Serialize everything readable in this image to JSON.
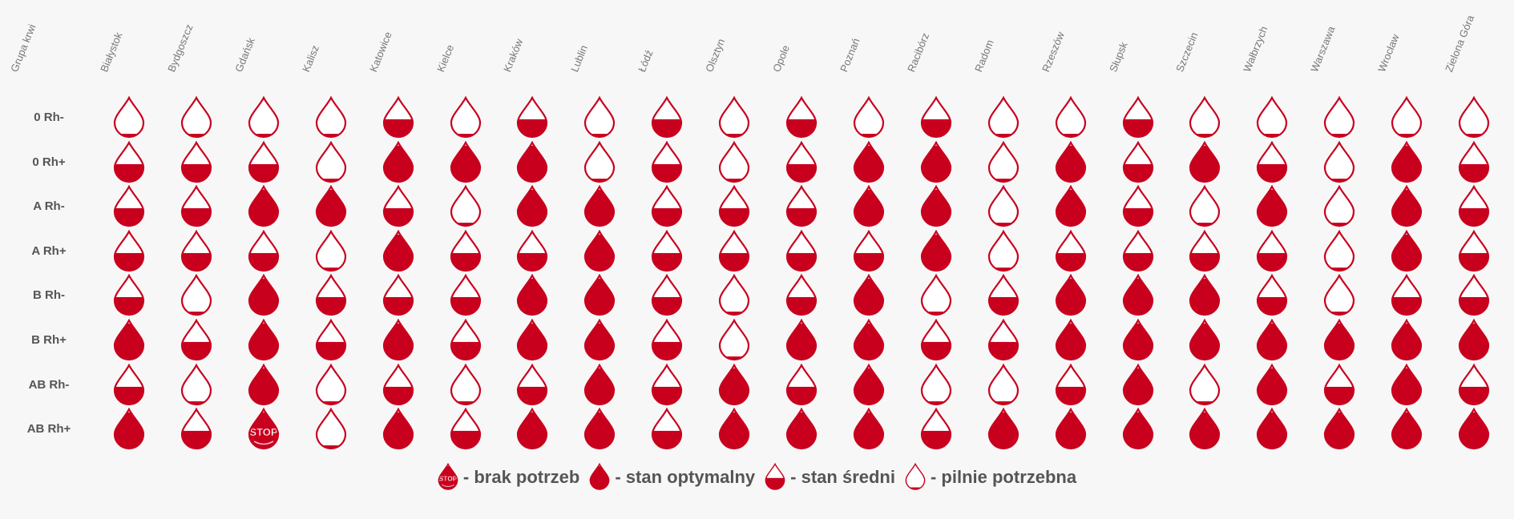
{
  "chart_data": {
    "type": "table",
    "corner_header": "Grupa krwi",
    "cities": [
      "Białystok",
      "Bydgoszcz",
      "Gdańsk",
      "Kalisz",
      "Katowice",
      "Kielce",
      "Kraków",
      "Lublin",
      "Łódź",
      "Olsztyn",
      "Opole",
      "Poznań",
      "Racibórz",
      "Radom",
      "Rzeszów",
      "Słupsk",
      "Szczecin",
      "Wałbrzych",
      "Warszawa",
      "Wrocław",
      "Zielona Góra"
    ],
    "blood_groups": [
      "0 Rh-",
      "0 Rh+",
      "A Rh-",
      "A Rh+",
      "B Rh-",
      "B Rh+",
      "AB Rh-",
      "AB Rh+"
    ],
    "levels": [
      [
        0.08,
        0.08,
        0.08,
        0.08,
        0.45,
        0.08,
        0.45,
        0.08,
        0.45,
        0.08,
        0.45,
        0.08,
        0.45,
        0.08,
        0.08,
        0.45,
        0.08,
        0.08,
        0.08,
        0.08,
        0.08
      ],
      [
        0.45,
        0.45,
        0.45,
        0.08,
        0.92,
        0.92,
        0.92,
        0.08,
        0.45,
        0.08,
        0.45,
        0.92,
        0.92,
        0.08,
        0.92,
        0.45,
        0.92,
        0.45,
        0.08,
        0.92,
        0.45
      ],
      [
        0.45,
        0.45,
        0.92,
        0.92,
        0.45,
        0.08,
        0.92,
        0.92,
        0.45,
        0.45,
        0.45,
        0.92,
        0.92,
        0.08,
        0.92,
        0.45,
        0.08,
        0.92,
        0.08,
        0.92,
        0.45
      ],
      [
        0.45,
        0.45,
        0.45,
        0.08,
        0.92,
        0.45,
        0.45,
        0.92,
        0.45,
        0.45,
        0.45,
        0.45,
        0.92,
        0.08,
        0.45,
        0.45,
        0.45,
        0.45,
        0.08,
        0.92,
        0.45
      ],
      [
        0.45,
        0.08,
        0.92,
        0.45,
        0.45,
        0.45,
        0.92,
        0.92,
        0.45,
        0.08,
        0.45,
        0.92,
        0.08,
        0.45,
        0.92,
        0.92,
        0.92,
        0.45,
        0.08,
        0.45,
        0.45
      ],
      [
        0.92,
        0.45,
        0.92,
        0.45,
        0.92,
        0.45,
        0.92,
        0.92,
        0.45,
        0.08,
        0.92,
        0.92,
        0.45,
        0.45,
        0.92,
        0.92,
        0.92,
        0.92,
        0.92,
        0.92,
        0.92
      ],
      [
        0.45,
        0.08,
        0.92,
        0.08,
        0.45,
        0.08,
        0.45,
        0.92,
        0.45,
        0.92,
        0.45,
        0.92,
        0.08,
        0.08,
        0.45,
        0.92,
        0.08,
        0.92,
        0.45,
        0.92,
        0.45
      ],
      [
        0.92,
        0.45,
        "stop",
        0.08,
        0.92,
        0.45,
        0.92,
        0.92,
        0.45,
        0.92,
        0.92,
        0.92,
        0.45,
        0.92,
        0.92,
        0.92,
        0.92,
        0.92,
        0.92,
        0.92,
        0.92
      ]
    ],
    "stop_text": "STOP",
    "legend": [
      {
        "key": "stop",
        "level": "stop",
        "label": "- brak potrzeb"
      },
      {
        "key": "optimal",
        "level": 0.92,
        "label": "- stan optymalny"
      },
      {
        "key": "medium",
        "level": 0.45,
        "label": "- stan średni"
      },
      {
        "key": "urgent",
        "level": 0.08,
        "label": "- pilnie potrzebna"
      }
    ],
    "colors": {
      "blood": "#c8001e",
      "outline": "#c8001e",
      "empty": "#ffffff",
      "text": "#555555",
      "header": "#777777"
    }
  }
}
